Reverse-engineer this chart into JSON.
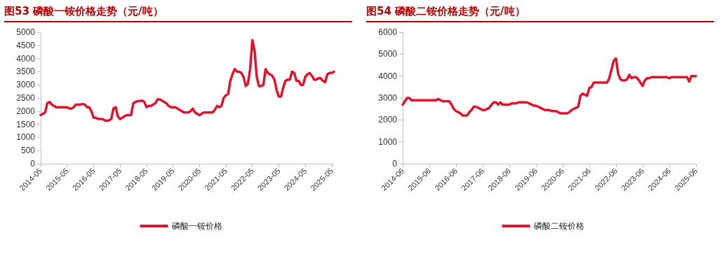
{
  "chart_data": [
    {
      "type": "line",
      "title": "图53  磷酸一铵价格走势（元/吨）",
      "legend": "bottom",
      "grid": false,
      "marker": "none",
      "line_style": "solid",
      "ylim": [
        0,
        5000
      ],
      "yticks": [
        0,
        500,
        1000,
        1500,
        2000,
        2500,
        3000,
        3500,
        4000,
        4500,
        5000
      ],
      "categories": [
        "2014-05",
        null,
        null,
        null,
        null,
        null,
        null,
        null,
        null,
        null,
        null,
        null,
        "2015-05",
        null,
        null,
        null,
        null,
        null,
        null,
        null,
        null,
        null,
        null,
        null,
        "2016-05",
        null,
        null,
        null,
        null,
        null,
        null,
        null,
        null,
        null,
        null,
        null,
        "2017-05",
        null,
        null,
        null,
        null,
        null,
        null,
        null,
        null,
        null,
        null,
        null,
        "2018-05",
        null,
        null,
        null,
        null,
        null,
        null,
        null,
        null,
        null,
        null,
        null,
        "2019-05",
        null,
        null,
        null,
        null,
        null,
        null,
        null,
        null,
        null,
        null,
        null,
        "2020-05",
        null,
        null,
        null,
        null,
        null,
        null,
        null,
        null,
        null,
        null,
        null,
        "2021-05",
        null,
        null,
        null,
        null,
        null,
        null,
        null,
        null,
        null,
        null,
        null,
        "2022-05",
        null,
        null,
        null,
        null,
        null,
        null,
        null,
        null,
        null,
        null,
        null,
        "2023-05",
        null,
        null,
        null,
        null,
        null,
        null,
        null,
        null,
        null,
        null,
        null,
        "2024-05",
        null,
        null,
        null,
        null,
        null,
        null,
        null,
        null,
        null,
        null,
        null,
        "2025-05",
        null
      ],
      "series": [
        {
          "name": "磷酸一铵价格",
          "color": "#e0142c",
          "values": [
            1850,
            1900,
            1950,
            2300,
            2350,
            2250,
            2200,
            2150,
            2150,
            2150,
            2150,
            2150,
            2150,
            2100,
            2100,
            2150,
            2250,
            2250,
            2250,
            2270,
            2250,
            2150,
            2150,
            2000,
            1750,
            1750,
            1700,
            1700,
            1700,
            1650,
            1630,
            1650,
            1700,
            2100,
            2150,
            1800,
            1700,
            1750,
            1800,
            1850,
            1850,
            1850,
            2300,
            2350,
            2380,
            2380,
            2400,
            2350,
            2150,
            2200,
            2200,
            2250,
            2300,
            2450,
            2450,
            2400,
            2350,
            2300,
            2200,
            2150,
            2150,
            2150,
            2100,
            2050,
            2000,
            1950,
            1950,
            1950,
            2000,
            2100,
            1950,
            1900,
            1850,
            1900,
            1950,
            1950,
            1950,
            1950,
            1950,
            2050,
            2200,
            2150,
            2200,
            2500,
            2600,
            2650,
            3150,
            3400,
            3600,
            3500,
            3500,
            3450,
            3300,
            2950,
            3050,
            3600,
            4700,
            4300,
            3300,
            2950,
            2950,
            3000,
            3600,
            3450,
            3400,
            3350,
            3200,
            2800,
            2550,
            2550,
            2900,
            3150,
            3200,
            3200,
            3500,
            3450,
            3150,
            3150,
            3000,
            3000,
            3300,
            3400,
            3450,
            3350,
            3200,
            3200,
            3250,
            3250,
            3150,
            3100,
            3400,
            3450,
            3450,
            3500
          ]
        }
      ]
    },
    {
      "type": "line",
      "title": "图54  磷酸二铵价格走势（元/吨）",
      "legend": "bottom",
      "grid": false,
      "marker": "none",
      "line_style": "solid",
      "ylim": [
        0,
        6000
      ],
      "yticks": [
        0,
        1000,
        2000,
        3000,
        4000,
        5000,
        6000
      ],
      "categories": [
        "2014-06",
        null,
        null,
        null,
        null,
        null,
        null,
        null,
        null,
        null,
        null,
        null,
        "2015-06",
        null,
        null,
        null,
        null,
        null,
        null,
        null,
        null,
        null,
        null,
        null,
        "2016-06",
        null,
        null,
        null,
        null,
        null,
        null,
        null,
        null,
        null,
        null,
        null,
        "2017-06",
        null,
        null,
        null,
        null,
        null,
        null,
        null,
        null,
        null,
        null,
        null,
        "2018-06",
        null,
        null,
        null,
        null,
        null,
        null,
        null,
        null,
        null,
        null,
        null,
        "2019-06",
        null,
        null,
        null,
        null,
        null,
        null,
        null,
        null,
        null,
        null,
        null,
        "2020-06",
        null,
        null,
        null,
        null,
        null,
        null,
        null,
        null,
        null,
        null,
        null,
        "2021-06",
        null,
        null,
        null,
        null,
        null,
        null,
        null,
        null,
        null,
        null,
        null,
        "2022-06",
        null,
        null,
        null,
        null,
        null,
        null,
        null,
        null,
        null,
        null,
        null,
        "2023-06",
        null,
        null,
        null,
        null,
        null,
        null,
        null,
        null,
        null,
        null,
        null,
        "2024-06",
        null,
        null,
        null,
        null,
        null,
        null,
        null,
        null,
        null,
        null,
        null,
        "2025-06"
      ],
      "series": [
        {
          "name": "磷酸二铵价格",
          "color": "#e0142c",
          "values": [
            2700,
            2850,
            3000,
            3000,
            2900,
            2900,
            2900,
            2900,
            2900,
            2900,
            2900,
            2900,
            2900,
            2900,
            2900,
            2900,
            2950,
            2900,
            2850,
            2850,
            2850,
            2850,
            2700,
            2500,
            2400,
            2350,
            2300,
            2200,
            2200,
            2200,
            2350,
            2450,
            2600,
            2600,
            2550,
            2500,
            2450,
            2450,
            2500,
            2550,
            2700,
            2800,
            2800,
            2700,
            2800,
            2700,
            2700,
            2700,
            2700,
            2750,
            2750,
            2750,
            2800,
            2800,
            2800,
            2800,
            2800,
            2750,
            2700,
            2650,
            2650,
            2600,
            2550,
            2500,
            2450,
            2450,
            2450,
            2400,
            2400,
            2400,
            2350,
            2300,
            2300,
            2300,
            2300,
            2350,
            2450,
            2500,
            2550,
            2600,
            3100,
            3200,
            3150,
            3100,
            3450,
            3500,
            3700,
            3700,
            3700,
            3700,
            3700,
            3700,
            3700,
            3900,
            4300,
            4700,
            4800,
            4100,
            3850,
            3800,
            3800,
            3850,
            4050,
            3900,
            3950,
            3950,
            3850,
            3700,
            3550,
            3800,
            3900,
            3900,
            3950,
            3950,
            3950,
            3950,
            3950,
            3950,
            3950,
            3950,
            3900,
            3950,
            3950,
            3950,
            3950,
            3950,
            3950,
            3950,
            3950,
            3750,
            4000,
            4000,
            4000
          ]
        }
      ]
    }
  ]
}
